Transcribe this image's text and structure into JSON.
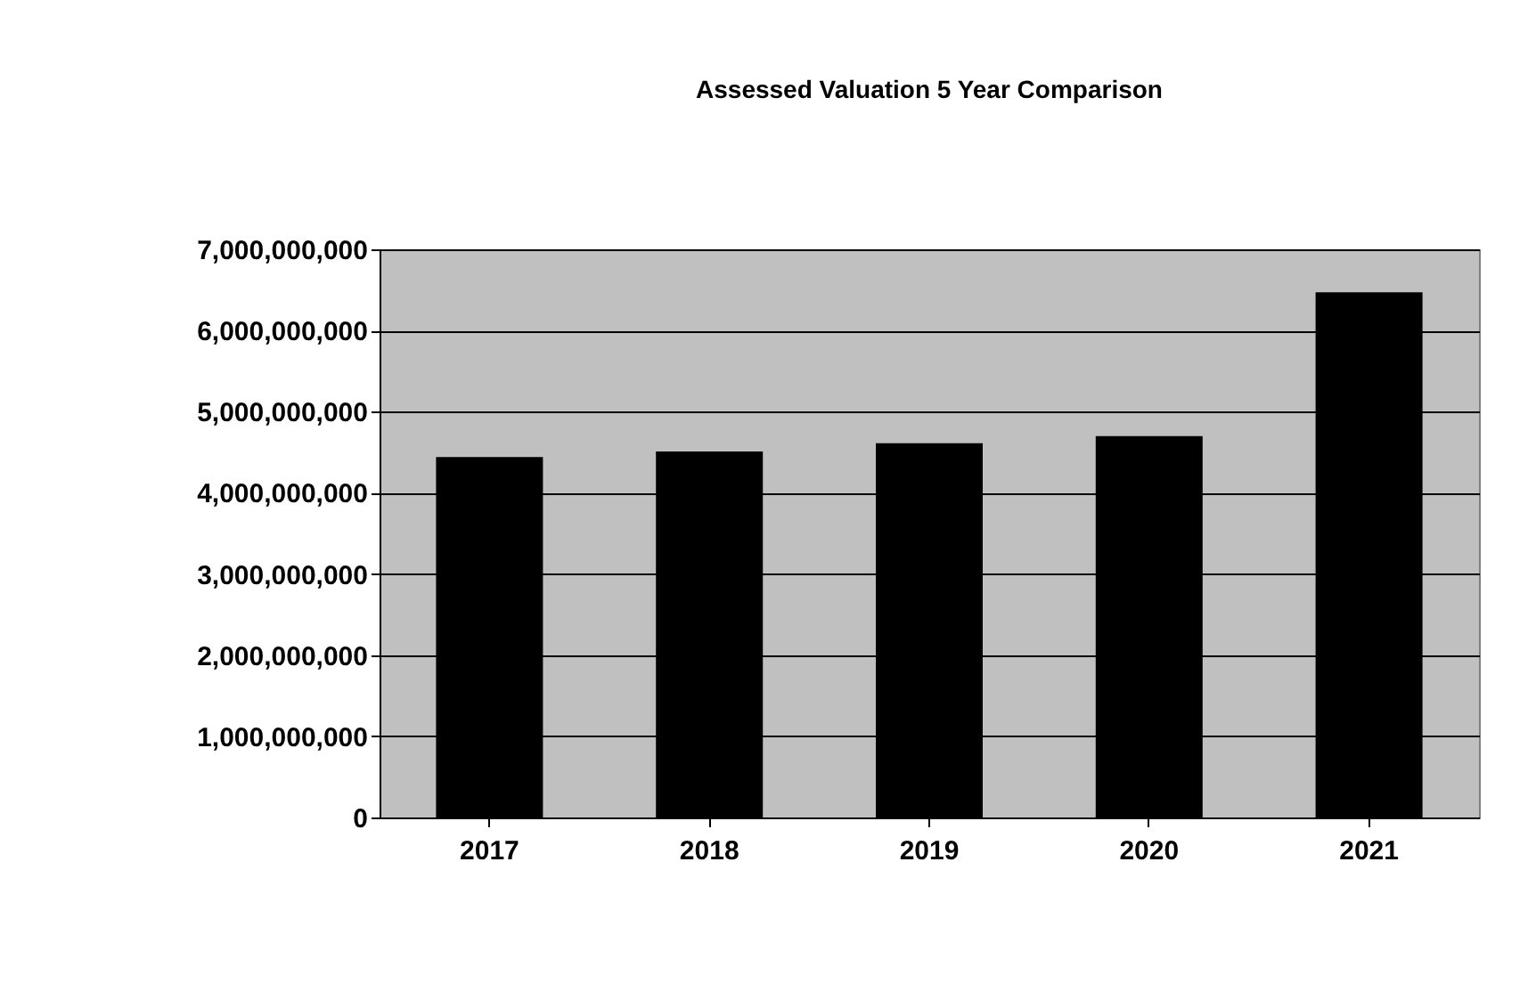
{
  "chart_data": {
    "type": "bar",
    "title": "Assessed Valuation 5 Year Comparison",
    "categories": [
      "2017",
      "2018",
      "2019",
      "2020",
      "2021"
    ],
    "values": [
      4440000000,
      4510000000,
      4610000000,
      4700000000,
      6470000000
    ],
    "color": "#000000",
    "ylim": [
      0,
      7000000000
    ],
    "yticks": [
      0,
      {
        "value": 1000000000,
        "label": "1,000,000,000"
      },
      {
        "value": 2000000000,
        "label": "2,000,000,000"
      },
      {
        "value": 3000000000,
        "label": "3,000,000,000"
      },
      {
        "value": 4000000000,
        "label": "4,000,000,000"
      },
      {
        "value": 5000000000,
        "label": "5,000,000,000"
      },
      {
        "value": 6000000000,
        "label": "6,000,000,000"
      },
      {
        "value": 7000000000,
        "label": "7,000,000,000"
      }
    ],
    "grid": "y"
  }
}
